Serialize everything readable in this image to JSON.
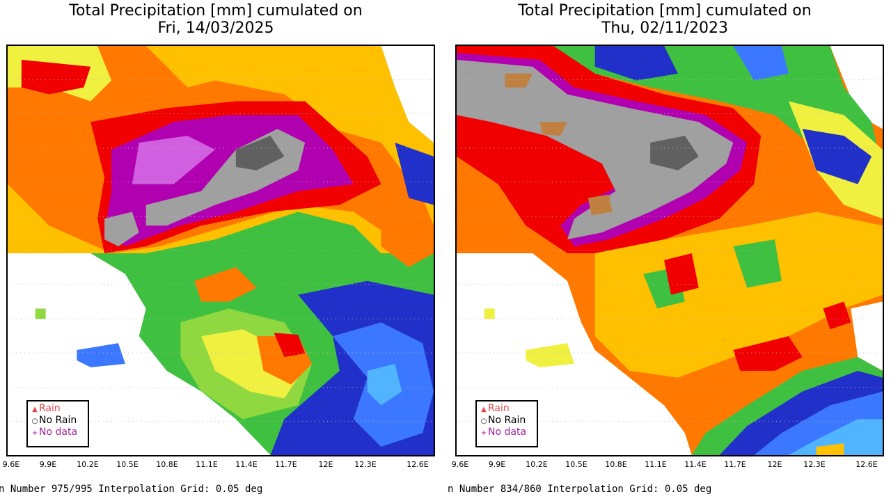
{
  "panels": [
    {
      "title_line1": "Total Precipitation [mm] cumulated on",
      "title_line2": "Fri, 14/03/2025",
      "footer": "n Number 975/995 Interpolation Grid: 0.05 deg",
      "x_ticks": [
        "9.6E",
        "9.9E",
        "10.2E",
        "10.5E",
        "10.8E",
        "11.1E",
        "11.4E",
        "11.7E",
        "12E",
        "12.3E",
        "12.6E"
      ]
    },
    {
      "title_line1": "Total Precipitation [mm] cumulated on",
      "title_line2": "Thu, 02/11/2023",
      "footer": "n Number 834/860 Interpolation Grid: 0.05 deg",
      "x_ticks": [
        "9.6E",
        "9.9E",
        "10.2E",
        "10.5E",
        "10.8E",
        "11.1E",
        "11.4E",
        "11.7E",
        "12E",
        "12.3E",
        "12.6E"
      ]
    }
  ],
  "legend": {
    "rain": "Rain",
    "no_rain": "No Rain",
    "no_data": "No data"
  },
  "colors": {
    "rain_marker": "#e04a4a",
    "no_data_marker": "#a020a0",
    "precip_scale": [
      "#2030c8",
      "#3c78ff",
      "#50b4ff",
      "#40c040",
      "#90d840",
      "#f0f040",
      "#ffc000",
      "#ff7800",
      "#f00000",
      "#b000b0",
      "#d060e0",
      "#a0a0a0",
      "#606060",
      "#c08040"
    ]
  }
}
